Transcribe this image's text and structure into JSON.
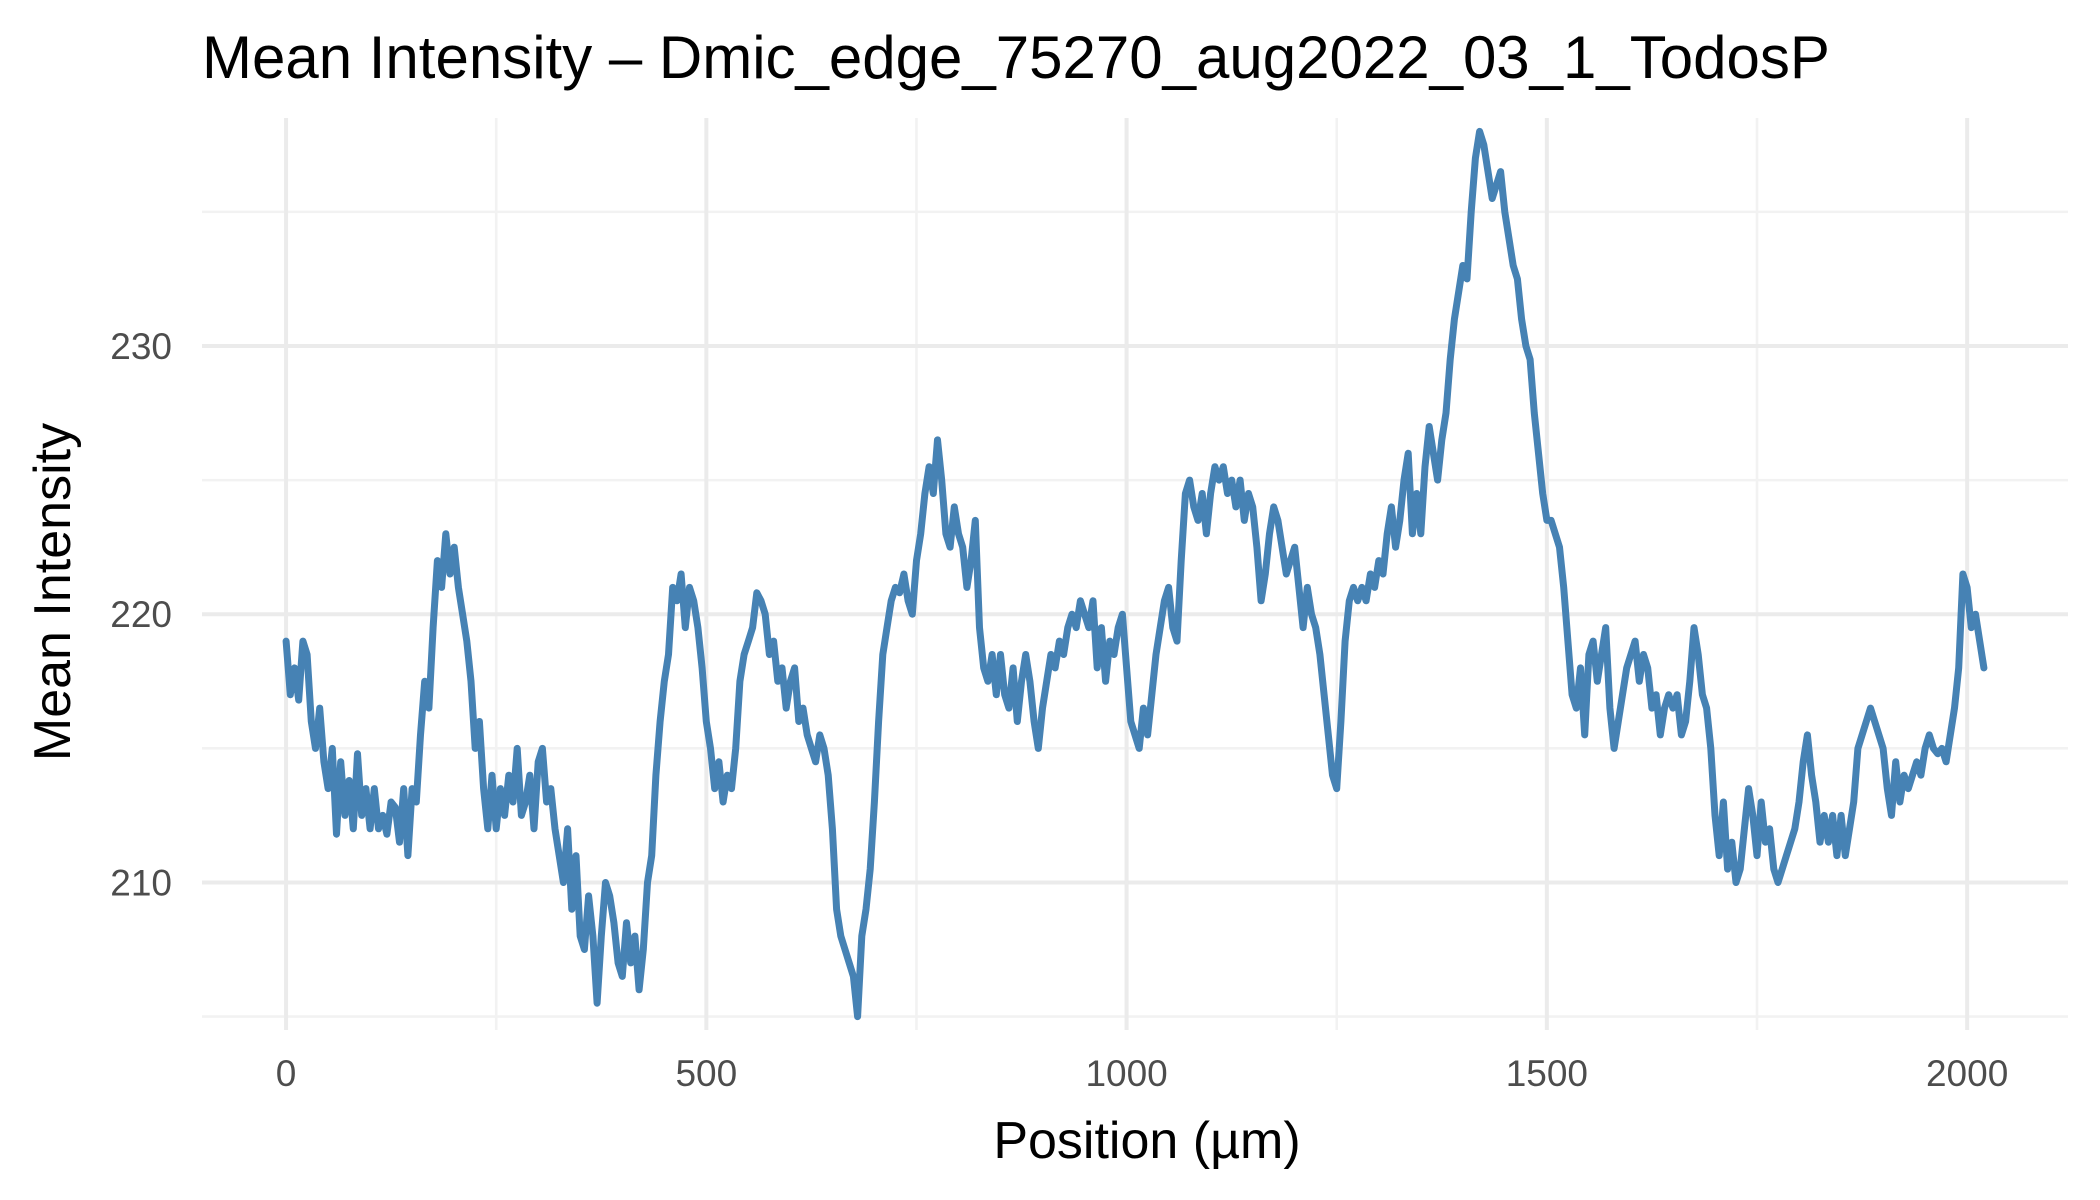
{
  "chart_data": {
    "type": "line",
    "title": "Mean Intensity – Dmic_edge_75270_aug2022_03_1_TodosP",
    "xlabel": "Position (µm)",
    "ylabel": "Mean Intensity",
    "xlim": [
      -100,
      2120
    ],
    "ylim": [
      204.5,
      238.5
    ],
    "x_ticks": [
      0,
      500,
      1000,
      1500,
      2000
    ],
    "y_ticks": [
      210,
      220,
      230
    ],
    "x_minor": [
      250,
      750,
      1250,
      1750
    ],
    "y_minor": [
      205,
      215,
      225,
      235
    ],
    "grid": true,
    "legend": "none",
    "colors": {
      "line": "#4682B4",
      "grid_major": "#ebebeb",
      "grid_minor": "#f2f2f2",
      "tick": "#4d4d4d"
    },
    "series": [
      {
        "x": [
          0,
          5,
          10,
          15,
          20,
          25,
          30,
          35,
          40,
          45,
          50,
          55,
          60,
          65,
          70,
          75,
          80,
          85,
          90,
          95,
          100,
          105,
          110,
          115,
          120,
          125,
          130,
          135,
          140,
          145,
          150,
          155,
          160,
          165,
          170,
          175,
          180,
          185,
          190,
          195,
          200,
          205,
          210,
          215,
          220,
          225,
          230,
          235,
          240,
          245,
          250,
          255,
          260,
          265,
          270,
          275,
          280,
          285,
          290,
          295,
          300,
          305,
          310,
          315,
          320,
          325,
          330,
          335,
          340,
          345,
          350,
          355,
          360,
          365,
          370,
          375,
          380,
          385,
          390,
          395,
          400,
          405,
          410,
          415,
          420,
          425,
          430,
          435,
          440,
          445,
          450,
          455,
          460,
          465,
          470,
          475,
          480,
          485,
          490,
          495,
          500,
          505,
          510,
          515,
          520,
          525,
          530,
          535,
          540,
          545,
          550,
          555,
          560,
          565,
          570,
          575,
          580,
          585,
          590,
          595,
          600,
          605,
          610,
          615,
          620,
          625,
          630,
          635,
          640,
          645,
          650,
          655,
          660,
          665,
          670,
          675,
          680,
          685,
          690,
          695,
          700,
          705,
          710,
          715,
          720,
          725,
          730,
          735,
          740,
          745,
          750,
          755,
          760,
          765,
          770,
          775,
          780,
          785,
          790,
          795,
          800,
          805,
          810,
          815,
          820,
          825,
          830,
          835,
          840,
          845,
          850,
          855,
          860,
          865,
          870,
          875,
          880,
          885,
          890,
          895,
          900,
          905,
          910,
          915,
          920,
          925,
          930,
          935,
          940,
          945,
          950,
          955,
          960,
          965,
          970,
          975,
          980,
          985,
          990,
          995,
          1000,
          1005,
          1010,
          1015,
          1020,
          1025,
          1030,
          1035,
          1040,
          1045,
          1050,
          1055,
          1060,
          1065,
          1070,
          1075,
          1080,
          1085,
          1090,
          1095,
          1100,
          1105,
          1110,
          1115,
          1120,
          1125,
          1130,
          1135,
          1140,
          1145,
          1150,
          1155,
          1160,
          1165,
          1170,
          1175,
          1180,
          1185,
          1190,
          1195,
          1200,
          1205,
          1210,
          1215,
          1220,
          1225,
          1230,
          1235,
          1240,
          1245,
          1250,
          1255,
          1260,
          1265,
          1270,
          1275,
          1280,
          1285,
          1290,
          1295,
          1300,
          1305,
          1310,
          1315,
          1320,
          1325,
          1330,
          1335,
          1340,
          1345,
          1350,
          1355,
          1360,
          1365,
          1370,
          1375,
          1380,
          1385,
          1390,
          1395,
          1400,
          1405,
          1410,
          1415,
          1420,
          1425,
          1430,
          1435,
          1440,
          1445,
          1450,
          1455,
          1460,
          1465,
          1470,
          1475,
          1480,
          1485,
          1490,
          1495,
          1500,
          1505,
          1510,
          1515,
          1520,
          1525,
          1530,
          1535,
          1540,
          1545,
          1550,
          1555,
          1560,
          1565,
          1570,
          1575,
          1580,
          1585,
          1590,
          1595,
          1600,
          1605,
          1610,
          1615,
          1620,
          1625,
          1630,
          1635,
          1640,
          1645,
          1650,
          1655,
          1660,
          1665,
          1670,
          1675,
          1680,
          1685,
          1690,
          1695,
          1700,
          1705,
          1710,
          1715,
          1720,
          1725,
          1730,
          1735,
          1740,
          1745,
          1750,
          1755,
          1760,
          1765,
          1770,
          1775,
          1780,
          1785,
          1790,
          1795,
          1800,
          1805,
          1810,
          1815,
          1820,
          1825,
          1830,
          1835,
          1840,
          1845,
          1850,
          1855,
          1860,
          1865,
          1870,
          1875,
          1880,
          1885,
          1890,
          1895,
          1900,
          1905,
          1910,
          1915,
          1920,
          1925,
          1930,
          1935,
          1940,
          1945,
          1950,
          1955,
          1960,
          1965,
          1970,
          1975,
          1980,
          1985,
          1990,
          1995,
          2000,
          2005,
          2010,
          2015,
          2020
        ],
        "y": [
          219.0,
          217.0,
          218.0,
          216.8,
          219.0,
          218.5,
          216.0,
          215.0,
          216.5,
          214.5,
          213.5,
          215.0,
          211.8,
          214.5,
          212.5,
          213.8,
          212.0,
          214.8,
          212.5,
          213.5,
          212.0,
          213.5,
          212.0,
          212.5,
          211.8,
          213.0,
          212.8,
          211.5,
          213.5,
          211.0,
          213.5,
          213.0,
          215.5,
          217.5,
          216.5,
          219.5,
          222.0,
          221.0,
          223.0,
          221.5,
          222.5,
          221.0,
          220.0,
          219.0,
          217.5,
          215.0,
          216.0,
          213.5,
          212.0,
          214.0,
          212.0,
          213.5,
          212.5,
          214.0,
          213.0,
          215.0,
          212.5,
          213.0,
          214.0,
          212.0,
          214.5,
          215.0,
          213.0,
          213.5,
          212.0,
          211.0,
          210.0,
          212.0,
          209.0,
          211.0,
          208.0,
          207.5,
          209.5,
          208.0,
          205.5,
          208.0,
          210.0,
          209.5,
          208.5,
          207.0,
          206.5,
          208.5,
          207.0,
          208.0,
          206.0,
          207.5,
          210.0,
          211.0,
          214.0,
          216.0,
          217.5,
          218.5,
          221.0,
          220.5,
          221.5,
          219.5,
          221.0,
          220.5,
          219.5,
          218.0,
          216.0,
          215.0,
          213.5,
          214.5,
          213.0,
          214.0,
          213.5,
          215.0,
          217.5,
          218.5,
          219.0,
          219.5,
          220.8,
          220.5,
          220.0,
          218.5,
          219.0,
          217.5,
          218.0,
          216.5,
          217.5,
          218.0,
          216.0,
          216.5,
          215.5,
          215.0,
          214.5,
          215.5,
          215.0,
          214.0,
          212.0,
          209.0,
          208.0,
          207.5,
          207.0,
          206.5,
          205.0,
          208.0,
          209.0,
          210.5,
          213.0,
          216.0,
          218.5,
          219.5,
          220.5,
          221.0,
          220.8,
          221.5,
          220.5,
          220.0,
          222.0,
          223.0,
          224.5,
          225.5,
          224.5,
          226.5,
          225.0,
          223.0,
          222.5,
          224.0,
          223.0,
          222.5,
          221.0,
          222.0,
          223.5,
          219.5,
          218.0,
          217.5,
          218.5,
          217.0,
          218.5,
          217.0,
          216.5,
          218.0,
          216.0,
          217.5,
          218.5,
          217.5,
          216.0,
          215.0,
          216.5,
          217.5,
          218.5,
          218.0,
          219.0,
          218.5,
          219.5,
          220.0,
          219.5,
          220.5,
          220.0,
          219.5,
          220.5,
          218.0,
          219.5,
          217.5,
          219.0,
          218.5,
          219.5,
          220.0,
          218.0,
          216.0,
          215.5,
          215.0,
          216.5,
          215.5,
          217.0,
          218.5,
          219.5,
          220.5,
          221.0,
          219.5,
          219.0,
          222.0,
          224.5,
          225.0,
          224.0,
          223.5,
          224.5,
          223.0,
          224.5,
          225.5,
          225.0,
          225.5,
          224.5,
          225.0,
          224.0,
          225.0,
          223.5,
          224.5,
          224.0,
          222.5,
          220.5,
          221.5,
          223.0,
          224.0,
          223.5,
          222.5,
          221.5,
          222.0,
          222.5,
          221.0,
          219.5,
          221.0,
          220.0,
          219.5,
          218.5,
          217.0,
          215.5,
          214.0,
          213.5,
          216.0,
          219.0,
          220.5,
          221.0,
          220.5,
          221.0,
          220.5,
          221.5,
          221.0,
          222.0,
          221.5,
          223.0,
          224.0,
          222.5,
          223.5,
          225.0,
          226.0,
          223.0,
          224.5,
          223.0,
          225.5,
          227.0,
          226.0,
          225.0,
          226.5,
          227.5,
          229.5,
          231.0,
          232.0,
          233.0,
          232.5,
          235.0,
          237.0,
          238.0,
          237.5,
          236.5,
          235.5,
          236.0,
          236.5,
          235.0,
          234.0,
          233.0,
          232.5,
          231.0,
          230.0,
          229.5,
          227.5,
          226.0,
          224.5,
          223.5,
          223.5,
          223.0,
          222.5,
          221.0,
          219.0,
          217.0,
          216.5,
          218.0,
          215.5,
          218.5,
          219.0,
          217.5,
          218.5,
          219.5,
          216.5,
          215.0,
          216.0,
          217.0,
          218.0,
          218.5,
          219.0,
          217.5,
          218.5,
          218.0,
          216.5,
          217.0,
          215.5,
          216.5,
          217.0,
          216.5,
          217.0,
          215.5,
          216.0,
          217.5,
          219.5,
          218.5,
          217.0,
          216.5,
          215.0,
          212.5,
          211.0,
          213.0,
          210.5,
          211.5,
          210.0,
          210.5,
          212.0,
          213.5,
          212.5,
          211.0,
          213.0,
          211.5,
          212.0,
          210.5,
          210.0,
          210.5,
          211.0,
          211.5,
          212.0,
          213.0,
          214.5,
          215.5,
          214.0,
          213.0,
          211.5,
          212.5,
          211.5,
          212.5,
          211.0,
          212.5,
          211.0,
          212.0,
          213.0,
          215.0,
          215.5,
          216.0,
          216.5,
          216.0,
          215.5,
          215.0,
          213.5,
          212.5,
          214.5,
          213.0,
          214.0,
          213.5,
          214.0,
          214.5,
          214.0,
          215.0,
          215.5,
          215.0,
          214.8,
          215.0,
          214.5,
          215.5,
          216.5,
          218.0,
          221.5,
          221.0,
          219.5,
          220.0,
          219.0,
          218.0
        ]
      }
    ]
  }
}
